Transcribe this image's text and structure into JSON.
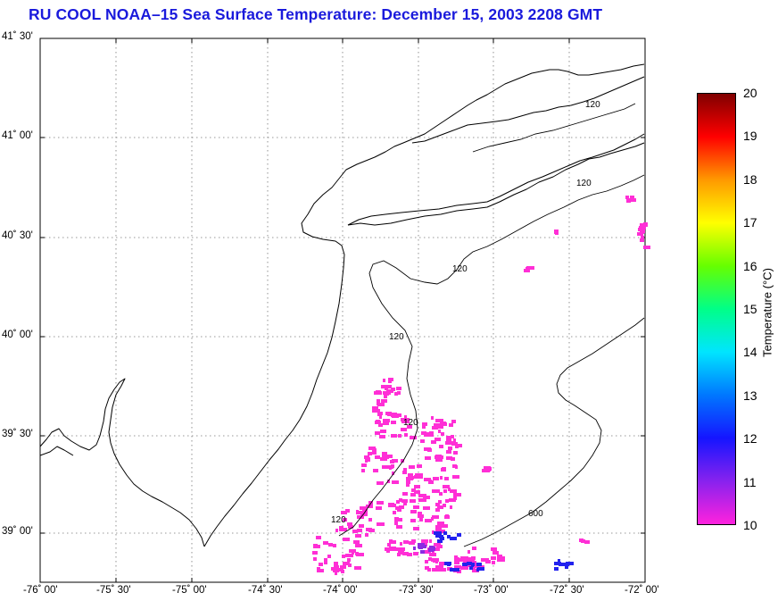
{
  "title": "RU COOL  NOAA–15  Sea Surface Temperature:  December 15, 2003 2208 GMT",
  "lat_labels": [
    "41˚ 30'",
    "41˚ 00'",
    "40˚ 30'",
    "40˚ 00'",
    "39˚ 30'",
    "39˚ 00'"
  ],
  "lon_labels": [
    "-76˚ 00'",
    "-75˚ 30'",
    "-75˚ 00'",
    "-74˚ 30'",
    "-74˚ 00'",
    "-73˚ 30'",
    "-73˚ 00'",
    "-72˚ 30'",
    "-72˚ 00'"
  ],
  "contour_labels": [
    "120",
    "120",
    "120",
    "120",
    "120",
    "120",
    "600"
  ],
  "colorbar": {
    "title": "Temperature (°C)",
    "ticks": [
      "20",
      "19",
      "18",
      "17",
      "16",
      "15",
      "14",
      "13",
      "12",
      "11",
      "10"
    ],
    "min": 10,
    "max": 20,
    "colors": [
      "#ff22dd",
      "#8822ee",
      "#1515ff",
      "#0077ff",
      "#00e5ff",
      "#00ff88",
      "#66ff00",
      "#ffff00",
      "#ff9900",
      "#ff0000",
      "#800000"
    ]
  },
  "map_extent": {
    "lon": [
      -76,
      -72
    ],
    "lat": [
      38.75,
      41.5
    ]
  }
}
